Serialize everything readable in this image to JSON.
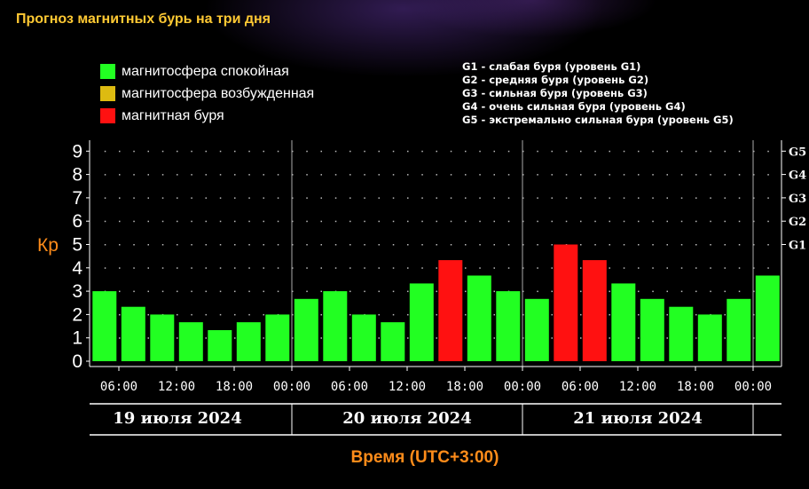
{
  "title": "Прогноз магнитных бурь на три дня",
  "legend": {
    "items": [
      {
        "label": "магнитосфера спокойная",
        "color": "#22ff22"
      },
      {
        "label": "магнитосфера возбужденная",
        "color": "#ddbb11"
      },
      {
        "label": "магнитная буря",
        "color": "#ff1111"
      }
    ]
  },
  "storm_levels": [
    "G1 - слабая буря (уровень G1)",
    "G2 - средняя буря (уровень G2)",
    "G3 - сильная буря (уровень G3)",
    "G4 - очень сильная буря (уровень G4)",
    "G5 - экстремально сильная буря (уровень G5)"
  ],
  "chart_data": {
    "type": "bar",
    "ylabel": "Кр",
    "xlabel": "Время (UTC+3:00)",
    "ylim": [
      0,
      9
    ],
    "y_ticks": [
      "0",
      "1",
      "2",
      "3",
      "4",
      "5",
      "6",
      "7",
      "8",
      "9"
    ],
    "right_ticks": [
      {
        "label": "G1",
        "value": 5
      },
      {
        "label": "G2",
        "value": 6
      },
      {
        "label": "G3",
        "value": 7
      },
      {
        "label": "G4",
        "value": 8
      },
      {
        "label": "G5",
        "value": 9
      }
    ],
    "x_tick_labels": [
      "06:00",
      "12:00",
      "18:00",
      "00:00",
      "06:00",
      "12:00",
      "18:00",
      "00:00",
      "06:00",
      "12:00",
      "18:00",
      "00:00"
    ],
    "days": [
      "19 июля 2024",
      "20 июля 2024",
      "21 июля 2024"
    ],
    "grid": true,
    "colors": {
      "calm": "#22ff22",
      "storm": "#ff1111",
      "axis": "#ffffff",
      "label_accent": "#ff8c1a"
    },
    "values": [
      3.0,
      2.33,
      2.0,
      1.67,
      1.33,
      1.67,
      2.0,
      2.67,
      3.0,
      2.0,
      1.67,
      3.33,
      4.33,
      3.67,
      3.0,
      2.67,
      5.0,
      4.33,
      3.33,
      2.67,
      2.33,
      2.0,
      2.67,
      3.67
    ],
    "status": [
      "calm",
      "calm",
      "calm",
      "calm",
      "calm",
      "calm",
      "calm",
      "calm",
      "calm",
      "calm",
      "calm",
      "calm",
      "storm",
      "calm",
      "calm",
      "calm",
      "storm",
      "storm",
      "calm",
      "calm",
      "calm",
      "calm",
      "calm",
      "calm"
    ]
  }
}
